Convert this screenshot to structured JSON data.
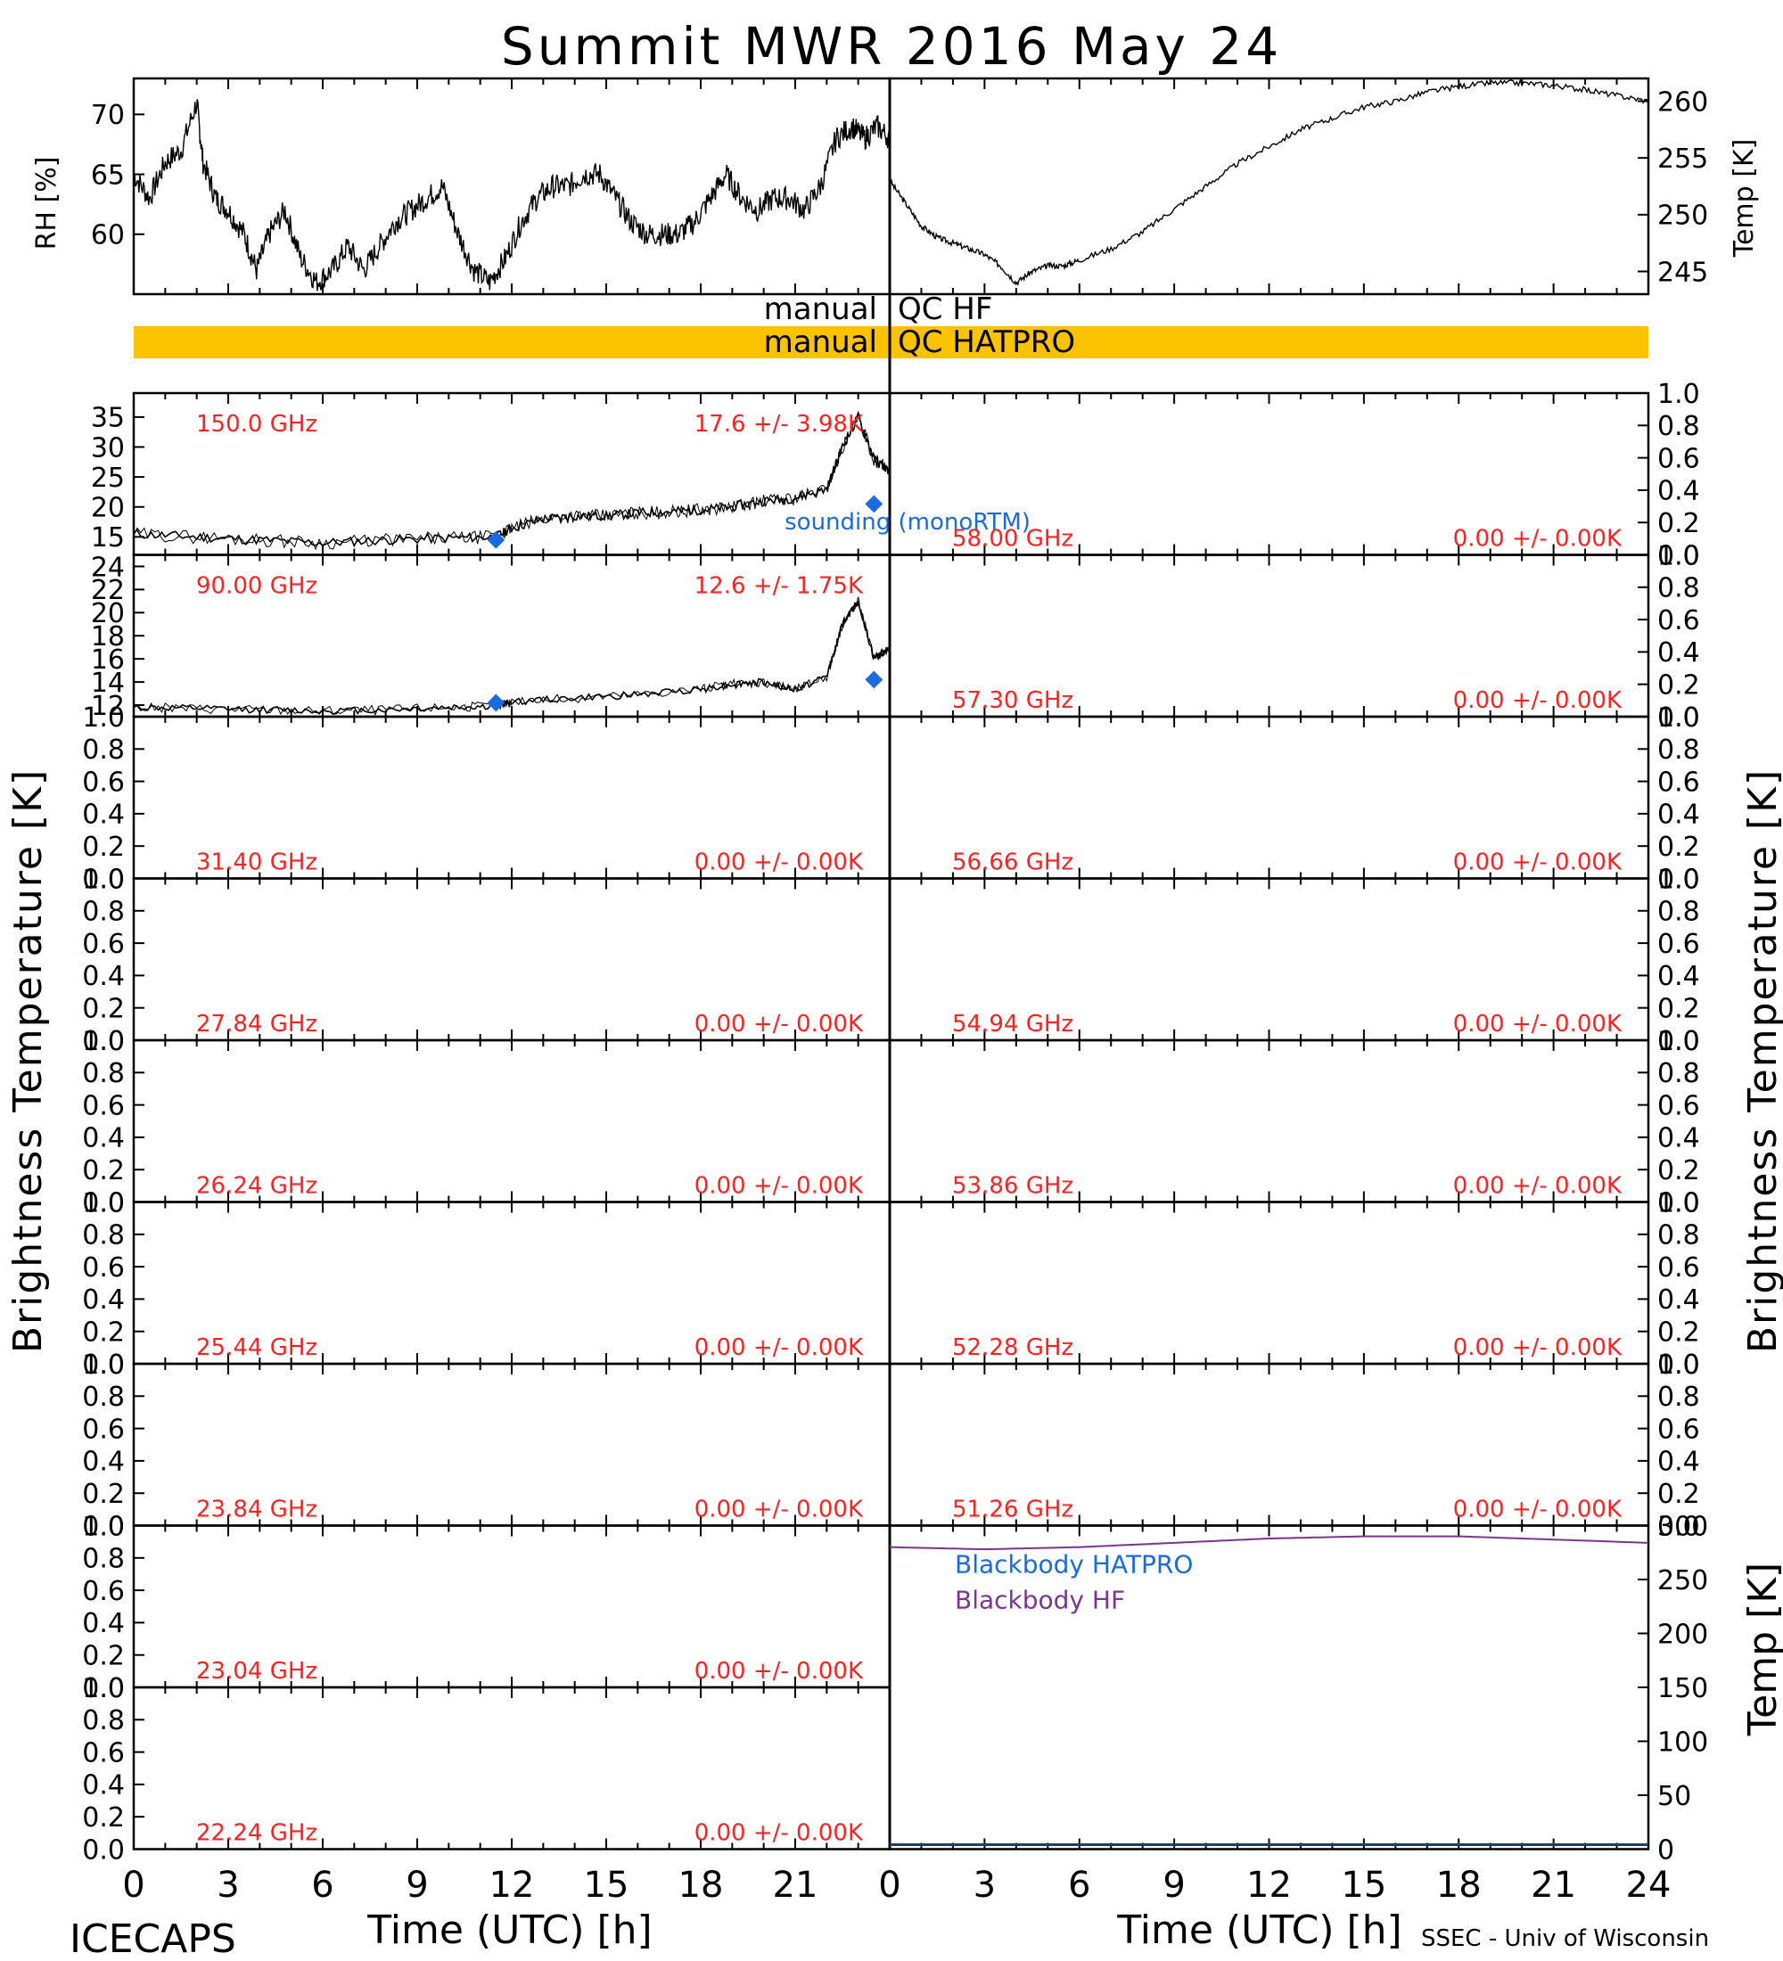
{
  "title": "Summit MWR 2016 May 24",
  "footer": {
    "left": "ICECAPS",
    "right": "SSEC - Univ of Wisconsin"
  },
  "colors": {
    "red": "#ff2020",
    "blue": "#1a6ae0",
    "purple": "#7a3590",
    "orange": "#fbc200",
    "black": "#000000"
  },
  "y_axis_labels": {
    "rh": "RH [%]",
    "temp_top": "Temp [K]",
    "left_main": "Brightness Temperature [K]",
    "right_main": "Brightness Temperature [K]",
    "temp_bottom": "Temp [K]"
  },
  "qc": {
    "left_label_1": "manual",
    "right_label_1": "QC HF",
    "left_label_2": "manual",
    "right_label_2": "QC HATPRO"
  },
  "x_axis": {
    "label_left": "Time (UTC) [h]",
    "label_right": "Time (UTC) [h]",
    "ticks_left": [
      "0",
      "3",
      "6",
      "9",
      "12",
      "15",
      "18",
      "21"
    ],
    "ticks_right": [
      "0",
      "3",
      "6",
      "9",
      "12",
      "15",
      "18",
      "21",
      "24"
    ]
  },
  "chart_data": [
    {
      "type": "line",
      "panel": "rh",
      "ylabel": "RH [%]",
      "xlim": [
        0,
        24
      ],
      "ylim": [
        55,
        73
      ],
      "yticks": [
        60,
        65,
        70
      ],
      "x": [
        0,
        0.5,
        1,
        1.5,
        2,
        2.2,
        2.6,
        3,
        3.5,
        3.9,
        4.3,
        4.8,
        5.3,
        5.8,
        6.3,
        6.8,
        7.3,
        7.8,
        8.3,
        8.8,
        9.3,
        9.8,
        10.3,
        10.8,
        11.3,
        11.8,
        12.3,
        12.8,
        13.3,
        13.8,
        14.3,
        14.8,
        15.3,
        15.8,
        16.3,
        16.8,
        17.3,
        17.8,
        18.3,
        18.8,
        19.3,
        19.8,
        20.3,
        20.8,
        21.3,
        21.8,
        22.3,
        22.8,
        23.2,
        23.6,
        24
      ],
      "values": [
        65,
        63,
        66,
        67,
        71,
        66,
        63,
        62,
        60,
        57,
        60,
        62,
        58,
        56,
        57,
        59,
        57,
        59,
        61,
        62,
        63,
        64,
        60,
        57,
        56,
        58,
        61,
        63,
        64,
        64,
        65,
        65,
        63,
        61,
        60,
        60,
        60,
        61,
        63,
        65,
        63,
        62,
        63,
        63,
        62,
        64,
        68,
        69,
        68,
        69,
        68
      ]
    },
    {
      "type": "line",
      "panel": "temp",
      "ylabel": "Temp [K]",
      "xlim": [
        0,
        24
      ],
      "ylim": [
        243,
        262
      ],
      "yticks": [
        245,
        250,
        255,
        260
      ],
      "x": [
        0,
        0.5,
        1,
        1.5,
        2,
        2.5,
        3,
        3.5,
        4,
        4.5,
        5,
        5.5,
        6,
        7,
        8,
        9,
        10,
        11,
        12,
        13,
        14,
        15,
        16,
        17,
        18,
        19,
        20,
        21,
        22,
        23,
        24
      ],
      "values": [
        253,
        251,
        249,
        248,
        247.5,
        247,
        246.5,
        245.5,
        244,
        245,
        245.5,
        245.5,
        246,
        247,
        248.5,
        250.5,
        252.5,
        254.5,
        256,
        257.5,
        258.5,
        259.5,
        260,
        260.8,
        261.3,
        261.6,
        261.6,
        261.4,
        261,
        260.5,
        260
      ]
    },
    {
      "type": "line",
      "panel": "tb150",
      "channel": "150.0 GHz",
      "stat": "17.6 +/- 3.98K",
      "ylim": [
        12,
        39
      ],
      "yticks": [
        15,
        20,
        25,
        30,
        35
      ],
      "x": [
        0,
        2,
        4,
        6,
        8,
        10,
        11.5,
        12,
        13,
        14,
        15,
        16,
        17,
        18,
        19,
        20,
        21,
        22,
        22.5,
        23,
        23.5,
        24
      ],
      "values": [
        15.5,
        15,
        14.5,
        14,
        14.5,
        14.8,
        15,
        16.5,
        18,
        18.5,
        18.5,
        19,
        19.2,
        19.5,
        20,
        21,
        21.5,
        23,
        30,
        35,
        28,
        26
      ],
      "sounding": {
        "label": "sounding (monoRTM)",
        "x": [
          11.5,
          23.5
        ],
        "values": [
          14.5,
          20.5
        ]
      }
    },
    {
      "type": "line",
      "panel": "tb90",
      "channel": "90.00 GHz",
      "stat": "12.6 +/- 1.75K",
      "ylim": [
        11,
        25
      ],
      "yticks": [
        12,
        14,
        16,
        18,
        20,
        22,
        24
      ],
      "x": [
        0,
        2,
        4,
        6,
        8,
        10,
        11.5,
        12,
        14,
        16,
        18,
        19,
        20,
        21,
        22,
        22.5,
        23,
        23.5,
        24
      ],
      "values": [
        11.8,
        11.7,
        11.6,
        11.5,
        11.6,
        11.8,
        11.9,
        12.3,
        12.6,
        12.9,
        13.4,
        13.8,
        14,
        13.3,
        14.5,
        19,
        21,
        16,
        17
      ],
      "sounding": {
        "x": [
          11.5,
          23.5
        ],
        "values": [
          12.2,
          14.2
        ]
      }
    },
    {
      "type": "line",
      "panel": "empty",
      "channel": "58.00 GHz",
      "stat": "0.00 +/- 0.00K",
      "ylim": [
        0,
        1
      ]
    },
    {
      "type": "line",
      "panel": "empty",
      "channel": "57.30 GHz",
      "stat": "0.00 +/- 0.00K",
      "ylim": [
        0,
        1
      ]
    },
    {
      "type": "line",
      "panel": "empty",
      "channel": "31.40 GHz",
      "stat": "0.00 +/- 0.00K",
      "ylim": [
        0,
        1
      ]
    },
    {
      "type": "line",
      "panel": "empty",
      "channel": "56.66 GHz",
      "stat": "0.00 +/- 0.00K",
      "ylim": [
        0,
        1
      ]
    },
    {
      "type": "line",
      "panel": "empty",
      "channel": "27.84 GHz",
      "stat": "0.00 +/- 0.00K",
      "ylim": [
        0,
        1
      ]
    },
    {
      "type": "line",
      "panel": "empty",
      "channel": "54.94 GHz",
      "stat": "0.00 +/- 0.00K",
      "ylim": [
        0,
        1
      ]
    },
    {
      "type": "line",
      "panel": "empty",
      "channel": "26.24 GHz",
      "stat": "0.00 +/- 0.00K",
      "ylim": [
        0,
        1
      ]
    },
    {
      "type": "line",
      "panel": "empty",
      "channel": "53.86 GHz",
      "stat": "0.00 +/- 0.00K",
      "ylim": [
        0,
        1
      ]
    },
    {
      "type": "line",
      "panel": "empty",
      "channel": "25.44 GHz",
      "stat": "0.00 +/- 0.00K",
      "ylim": [
        0,
        1
      ]
    },
    {
      "type": "line",
      "panel": "empty",
      "channel": "52.28 GHz",
      "stat": "0.00 +/- 0.00K",
      "ylim": [
        0,
        1
      ]
    },
    {
      "type": "line",
      "panel": "empty",
      "channel": "23.84 GHz",
      "stat": "0.00 +/- 0.00K",
      "ylim": [
        0,
        1
      ]
    },
    {
      "type": "line",
      "panel": "empty",
      "channel": "51.26 GHz",
      "stat": "0.00 +/- 0.00K",
      "ylim": [
        0,
        1
      ]
    },
    {
      "type": "line",
      "panel": "empty",
      "channel": "23.04 GHz",
      "stat": "0.00 +/- 0.00K",
      "ylim": [
        0,
        1
      ]
    },
    {
      "type": "line",
      "panel": "empty",
      "channel": "22.24 GHz",
      "stat": "0.00 +/- 0.00K",
      "ylim": [
        0,
        1
      ]
    },
    {
      "type": "line",
      "panel": "blackbody",
      "ylabel": "Temp [K]",
      "ylim": [
        0,
        300
      ],
      "yticks": [
        0,
        50,
        100,
        150,
        200,
        250,
        300
      ],
      "legend": [
        "Blackbody HATPRO",
        "Blackbody HF"
      ],
      "x": [
        0,
        3,
        6,
        9,
        12,
        15,
        18,
        21,
        24
      ],
      "values": [
        280,
        278,
        280,
        284,
        288,
        290,
        290,
        287,
        284
      ]
    }
  ],
  "empty_yticks": [
    "0.0",
    "0.2",
    "0.4",
    "0.6",
    "0.8",
    "1.0"
  ]
}
